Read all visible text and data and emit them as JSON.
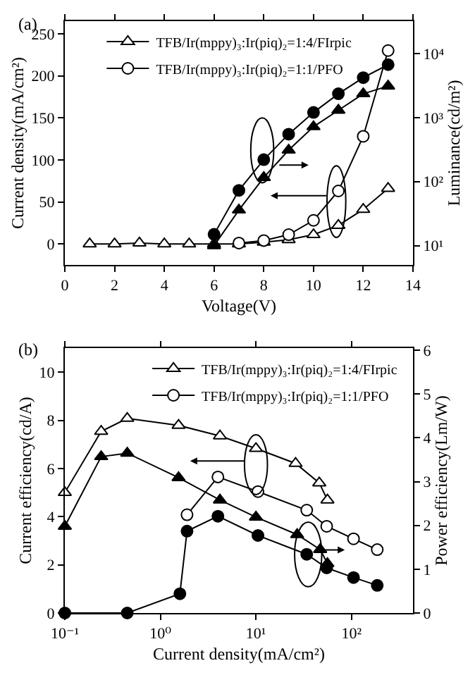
{
  "chart_data": [
    {
      "type": "line",
      "annotations": [
        "(a)"
      ],
      "xlabel": "Voltage(V)",
      "ylabel": "Current density(mA/cm²)",
      "y2label": "Luminance(cd/m²)",
      "xlim": [
        0,
        14
      ],
      "xticks": [
        0,
        2,
        4,
        6,
        8,
        10,
        12,
        14
      ],
      "ylim": [
        -25,
        265
      ],
      "yticks": [
        0,
        50,
        100,
        150,
        200,
        250
      ],
      "y2lim": [
        5,
        32000
      ],
      "y2ticks": [
        {
          "value": 10,
          "label": "10¹"
        },
        {
          "value": 100,
          "label": "10²"
        },
        {
          "value": 1000,
          "label": "10³"
        },
        {
          "value": 10000,
          "label": "10⁴"
        }
      ],
      "log": "y2",
      "grid": false,
      "legend": "top left",
      "series": [
        {
          "name": "TFB/Ir(mppy)₃:Ir(piq)₂=1:4/FIrpic",
          "color": "#000000",
          "marker": "triangle",
          "x": [
            1,
            2,
            3,
            4,
            5,
            6,
            7,
            8,
            9,
            10,
            11,
            12,
            13
          ],
          "values": [
            0,
            0,
            1,
            0,
            0,
            0,
            0,
            2,
            5,
            11,
            22,
            41,
            66
          ]
        },
        {
          "name": "TFB/Ir(mppy)₃:Ir(piq)₂=1:1/PFO",
          "color": "#000000",
          "marker": "circle",
          "x": [
            7,
            8,
            9,
            10,
            11,
            12,
            13
          ],
          "values": [
            1,
            4,
            11,
            28,
            63,
            128,
            230
          ]
        },
        {
          "color": "#000000",
          "marker": "triangle",
          "axis": "y2",
          "x": [
            6,
            7,
            8,
            9,
            10,
            11,
            12,
            13
          ],
          "values": [
            10,
            36,
            116,
            310,
            720,
            1300,
            2350,
            3100
          ]
        },
        {
          "color": "#000000",
          "marker": "circle",
          "axis": "y2",
          "x": [
            6,
            7,
            8,
            9,
            10,
            11,
            12,
            13
          ],
          "values": [
            15,
            73,
            220,
            550,
            1200,
            2350,
            4200,
            6700
          ]
        }
      ]
    },
    {
      "type": "line",
      "annotations": [
        "(b)"
      ],
      "xlabel": "Current density(mA/cm²)",
      "ylabel": "Current efficiency(cd/A)",
      "y2label": "Power efficiency(Lm/W)",
      "xlim": [
        0.1,
        440
      ],
      "xticks": [
        {
          "value": 0.1,
          "label": "10⁻¹"
        },
        {
          "value": 1,
          "label": "10⁰"
        },
        {
          "value": 10,
          "label": "10¹"
        },
        {
          "value": 100,
          "label": "10²"
        }
      ],
      "ylim": [
        0,
        11
      ],
      "yticks": [
        0,
        2,
        4,
        6,
        8,
        10
      ],
      "y2lim": [
        0,
        6.05
      ],
      "y2ticks": [
        0,
        1,
        2,
        3,
        4,
        5,
        6
      ],
      "log": "x",
      "grid": false,
      "legend": "top right",
      "series": [
        {
          "name": "TFB/Ir(mppy)₃:Ir(piq)₂=1:4/FIrpic",
          "color": "#000000",
          "marker": "triangle",
          "x": [
            0.1,
            0.24,
            0.45,
            1.55,
            4.2,
            10,
            26,
            46,
            56
          ],
          "values": [
            5.0,
            7.54,
            8.08,
            7.79,
            7.35,
            6.83,
            6.21,
            5.4,
            4.69
          ]
        },
        {
          "name": "TFB/Ir(mppy)₃:Ir(piq)₂=1:1/PFO",
          "color": "#000000",
          "marker": "circle",
          "x": [
            1.9,
            4.0,
            10.5,
            34,
            55,
            105,
            186
          ],
          "values": [
            4.08,
            5.65,
            5.04,
            4.27,
            3.6,
            3.08,
            2.63
          ]
        },
        {
          "color": "#000000",
          "marker": "triangle",
          "axis": "y2",
          "x": [
            0.1,
            0.24,
            0.45,
            1.55,
            4.2,
            10,
            27,
            47,
            56
          ],
          "values": [
            1.98,
            3.57,
            3.65,
            3.09,
            2.58,
            2.19,
            1.79,
            1.45,
            1.13
          ]
        },
        {
          "color": "#000000",
          "marker": "circle",
          "axis": "y2",
          "x": [
            0.1,
            0.45,
            1.6,
            1.9,
            4.0,
            10.5,
            34,
            55,
            105,
            186
          ],
          "values": [
            0,
            0,
            0.44,
            1.87,
            2.21,
            1.77,
            1.34,
            1.03,
            0.81,
            0.63
          ]
        }
      ]
    }
  ]
}
